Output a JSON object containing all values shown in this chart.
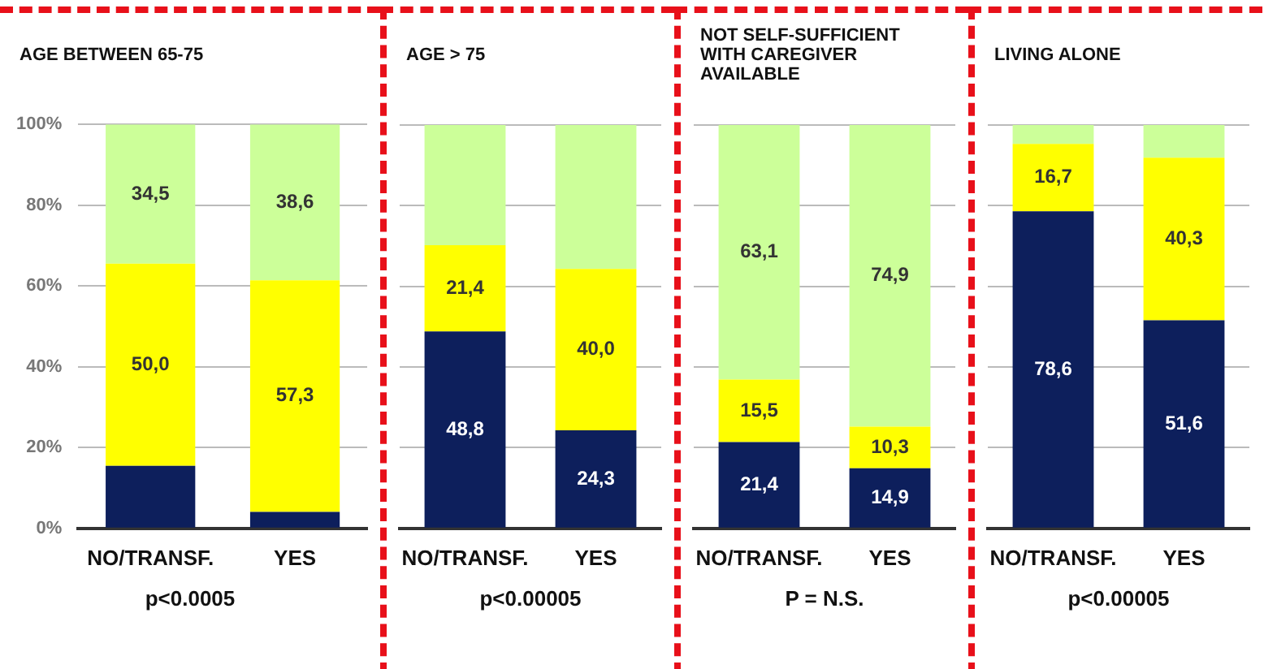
{
  "chart_data": [
    {
      "type": "bar",
      "title": "AGE BETWEEN 65-75",
      "categories": [
        "NO/TRANSF.",
        "YES"
      ],
      "stacked": true,
      "grid": "y",
      "ylim": [
        0,
        100
      ],
      "yticks": [
        {
          "value": 0,
          "label": "0%"
        },
        {
          "value": 20,
          "label": "20%"
        },
        {
          "value": 40,
          "label": "40%"
        },
        {
          "value": 60,
          "label": "60%"
        },
        {
          "value": 80,
          "label": "80%"
        },
        {
          "value": 100,
          "label": "100%"
        }
      ],
      "annotations": [
        "p<0.0005"
      ],
      "series": [
        {
          "color": "#0d1f5c",
          "values": [
            15.5,
            4.1
          ],
          "value_labels": [
            null,
            null
          ]
        },
        {
          "color": "#ffff00",
          "values": [
            50.0,
            57.3
          ],
          "value_labels": [
            "50,0",
            "57,3"
          ]
        },
        {
          "color": "#ccff99",
          "values": [
            34.5,
            38.6
          ],
          "value_labels": [
            "34,5",
            "38,6"
          ]
        }
      ]
    },
    {
      "type": "bar",
      "title": "AGE > 75",
      "categories": [
        "NO/TRANSF.",
        "YES"
      ],
      "stacked": true,
      "grid": "y",
      "tick_labels": "x",
      "ylim": [
        0,
        100
      ],
      "yticks": [
        0,
        20,
        40,
        60,
        80,
        100
      ],
      "annotations": [
        "p<0.00005"
      ],
      "series": [
        {
          "color": "#0d1f5c",
          "values": [
            48.8,
            24.3
          ],
          "value_labels": [
            "48,8",
            "24,3"
          ]
        },
        {
          "color": "#ffff00",
          "values": [
            21.4,
            40.0
          ],
          "value_labels": [
            "21,4",
            "40,0"
          ]
        },
        {
          "color": "#ccff99",
          "values": [
            29.8,
            35.7
          ],
          "value_labels": [
            null,
            null
          ]
        }
      ]
    },
    {
      "type": "bar",
      "title": "NOT SELF-SUFFICIENT WITH CAREGIVER AVAILABLE",
      "categories": [
        "NO/TRANSF.",
        "YES"
      ],
      "stacked": true,
      "grid": "y",
      "tick_labels": "x",
      "ylim": [
        0,
        100
      ],
      "yticks": [
        0,
        20,
        40,
        60,
        80,
        100
      ],
      "annotations": [
        "P = N.S."
      ],
      "series": [
        {
          "color": "#0d1f5c",
          "values": [
            21.4,
            14.9
          ],
          "value_labels": [
            "21,4",
            "14,9"
          ]
        },
        {
          "color": "#ffff00",
          "values": [
            15.5,
            10.3
          ],
          "value_labels": [
            "15,5",
            "10,3"
          ]
        },
        {
          "color": "#ccff99",
          "values": [
            63.1,
            74.9
          ],
          "value_labels": [
            "63,1",
            "74,9"
          ]
        }
      ]
    },
    {
      "type": "bar",
      "title": "LIVING ALONE",
      "categories": [
        "NO/TRANSF.",
        "YES"
      ],
      "stacked": true,
      "grid": "y",
      "tick_labels": "x",
      "ylim": [
        0,
        100
      ],
      "yticks": [
        0,
        20,
        40,
        60,
        80,
        100
      ],
      "annotations": [
        "p<0.00005"
      ],
      "series": [
        {
          "color": "#0d1f5c",
          "values": [
            78.6,
            51.6
          ],
          "value_labels": [
            "78,6",
            "51,6"
          ]
        },
        {
          "color": "#ffff00",
          "values": [
            16.7,
            40.3
          ],
          "value_labels": [
            "16,7",
            "40,3"
          ]
        },
        {
          "color": "#ccff99",
          "values": [
            4.7,
            8.1
          ],
          "value_labels": [
            null,
            null
          ]
        }
      ]
    }
  ]
}
